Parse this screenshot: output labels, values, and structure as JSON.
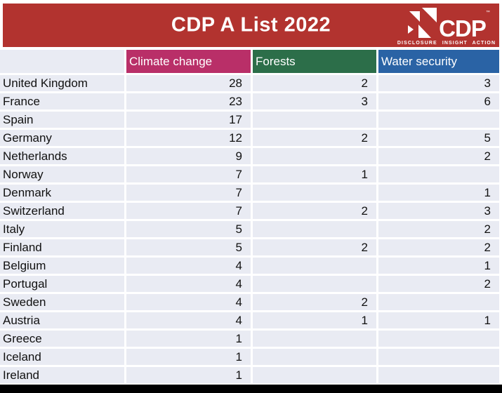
{
  "banner": {
    "title": "CDP A List 2022",
    "background_color": "#b2332f",
    "logo": {
      "wordmark": "CDP",
      "trademark": "™",
      "tagline": "DISCLOSURE INSIGHT ACTION"
    }
  },
  "colors": {
    "banner_red": "#b2332f",
    "climate_change_header": "#b92f68",
    "forests_header": "#2c6e49",
    "water_security_header": "#2a63a5",
    "row_background": "#e9ebf3",
    "row_text": "#111111",
    "bottom_bar": "#000000"
  },
  "chart_data": {
    "type": "table",
    "title": "CDP A List 2022",
    "row_header": "",
    "columns": [
      {
        "label": "Climate change",
        "header_color": "#b92f68"
      },
      {
        "label": "Forests",
        "header_color": "#2c6e49"
      },
      {
        "label": "Water security",
        "header_color": "#2a63a5"
      }
    ],
    "rows": [
      {
        "country": "United Kingdom",
        "values": [
          "28",
          "2",
          "3"
        ]
      },
      {
        "country": "France",
        "values": [
          "23",
          "3",
          "6"
        ]
      },
      {
        "country": "Spain",
        "values": [
          "17",
          "",
          ""
        ]
      },
      {
        "country": "Germany",
        "values": [
          "12",
          "2",
          "5"
        ]
      },
      {
        "country": "Netherlands",
        "values": [
          "9",
          "",
          "2"
        ]
      },
      {
        "country": "Norway",
        "values": [
          "7",
          "1",
          ""
        ]
      },
      {
        "country": "Denmark",
        "values": [
          "7",
          "",
          "1"
        ]
      },
      {
        "country": "Switzerland",
        "values": [
          "7",
          "2",
          "3"
        ]
      },
      {
        "country": "Italy",
        "values": [
          "5",
          "",
          "2"
        ]
      },
      {
        "country": "Finland",
        "values": [
          "5",
          "2",
          "2"
        ]
      },
      {
        "country": "Belgium",
        "values": [
          "4",
          "",
          "1"
        ]
      },
      {
        "country": "Portugal",
        "values": [
          "4",
          "",
          "2"
        ]
      },
      {
        "country": "Sweden",
        "values": [
          "4",
          "2",
          ""
        ]
      },
      {
        "country": "Austria",
        "values": [
          "4",
          "1",
          "1"
        ]
      },
      {
        "country": "Greece",
        "values": [
          "1",
          "",
          ""
        ]
      },
      {
        "country": "Iceland",
        "values": [
          "1",
          "",
          ""
        ]
      },
      {
        "country": "Ireland",
        "values": [
          "1",
          "",
          ""
        ]
      }
    ]
  }
}
